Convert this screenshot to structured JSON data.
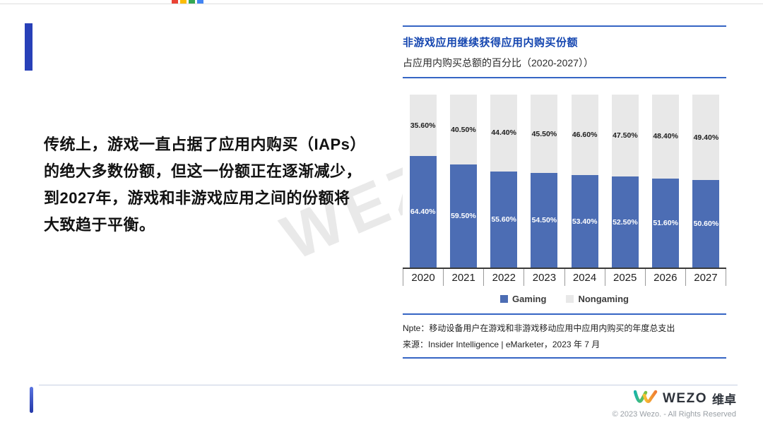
{
  "decor": {
    "top_strip_colors": [
      "#EA4335",
      "#FBBC05",
      "#34A853",
      "#4285F4"
    ],
    "accent_blue": "#2840B8",
    "rule_blue": "#3565C4"
  },
  "watermark": "WEZO",
  "left_text": {
    "lines": [
      "传统上，游戏一直占据了应用内购买（IAPs）",
      "的绝大多数份额，但这一份额正在逐渐减少，",
      "到2027年，游戏和非游戏应用之间的份额将",
      "大致趋于平衡。"
    ]
  },
  "chart": {
    "title": "非游戏应用继续获得应用内购买份额",
    "subtitle": "占应用内购买总额的百分比（2020-2027））",
    "note": "Npte：移动设备用户在游戏和非游戏移动应用中应用内购买的年度总支出",
    "source": "来源：Insider Intelligence | eMarketer，2023 年 7 月",
    "legend": [
      {
        "label": "Gaming",
        "color": "#4C6DB4"
      },
      {
        "label": "Nongaming",
        "color": "#E8E8E8"
      }
    ]
  },
  "chart_data": {
    "type": "bar",
    "stacked": true,
    "percent_total": 100,
    "categories": [
      "2020",
      "2021",
      "2022",
      "2023",
      "2024",
      "2025",
      "2026",
      "2027"
    ],
    "series": [
      {
        "name": "Gaming",
        "color": "#4C6DB4",
        "label_color": "#ffffff",
        "values": [
          64.4,
          59.5,
          55.6,
          54.5,
          53.4,
          52.5,
          51.6,
          50.6
        ]
      },
      {
        "name": "Nongaming",
        "color": "#E8E8E8",
        "label_color": "#1e1e1e",
        "values": [
          35.6,
          40.5,
          44.4,
          45.5,
          46.6,
          47.5,
          48.4,
          49.4
        ]
      }
    ],
    "title": "非游戏应用继续获得应用内购买份额",
    "xlabel": "",
    "ylabel": "",
    "ylim": [
      0,
      100
    ],
    "grid": false,
    "legend_position": "bottom"
  },
  "footer": {
    "logo_text": "WEZO",
    "logo_cn": "维卓",
    "copyright": "© 2023 Wezo. - All Rights Reserved"
  }
}
